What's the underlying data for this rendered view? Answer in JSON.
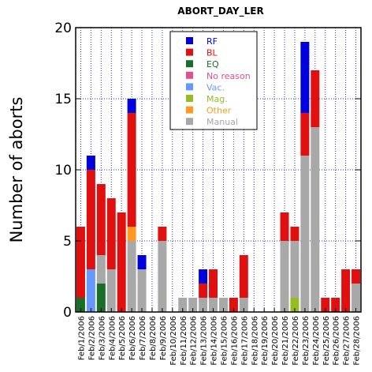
{
  "chart_data": {
    "type": "bar",
    "stacked": true,
    "title": "ABORT_DAY_LER",
    "xlabel": "",
    "ylabel": "Number of aborts",
    "ylim": [
      0,
      20
    ],
    "yticks": [
      0,
      5,
      10,
      15,
      20
    ],
    "grid": true,
    "legend_position": "top-center",
    "categories": [
      "Feb/1/2006",
      "Feb/2/2006",
      "Feb/3/2006",
      "Feb/4/2006",
      "Feb/5/2006",
      "Feb/6/2006",
      "Feb/7/2006",
      "Feb/8/2006",
      "Feb/9/2006",
      "Feb/10/2006",
      "Feb/11/2006",
      "Feb/12/2006",
      "Feb/13/2006",
      "Feb/14/2006",
      "Feb/15/2006",
      "Feb/16/2006",
      "Feb/17/2006",
      "Feb/18/2006",
      "Feb/19/2006",
      "Feb/20/2006",
      "Feb/21/2006",
      "Feb/22/2006",
      "Feb/23/2006",
      "Feb/24/2006",
      "Feb/25/2006",
      "Feb/26/2006",
      "Feb/27/2006",
      "Feb/28/2006"
    ],
    "stack_order": [
      "EQ",
      "Vac.",
      "Mag.",
      "Manual",
      "Other",
      "No reason",
      "BL",
      "RF"
    ],
    "series": [
      {
        "name": "RF",
        "color": "#0000dd",
        "values": [
          0,
          1,
          0,
          0,
          0,
          1,
          1,
          0,
          0,
          0,
          0,
          0,
          1,
          0,
          0,
          0,
          0,
          0,
          0,
          0,
          0,
          0,
          5,
          0,
          0,
          0,
          0,
          0
        ]
      },
      {
        "name": "BL",
        "color": "#e01010",
        "values": [
          5,
          7,
          5,
          5,
          7,
          8,
          0,
          0,
          1,
          0,
          0,
          0,
          1,
          2,
          0,
          1,
          3,
          0,
          0,
          0,
          2,
          1,
          3,
          4,
          1,
          1,
          3,
          1
        ]
      },
      {
        "name": "EQ",
        "color": "#1a6e2a",
        "values": [
          1,
          0,
          2,
          0,
          0,
          0,
          0,
          0,
          0,
          0,
          0,
          0,
          0,
          0,
          0,
          0,
          0,
          0,
          0,
          0,
          0,
          0,
          0,
          0,
          0,
          0,
          0,
          0
        ]
      },
      {
        "name": "No reason",
        "color": "#e0508a",
        "values": [
          0,
          0,
          0,
          0,
          0,
          0,
          0,
          0,
          0,
          0,
          0,
          0,
          0,
          0,
          0,
          0,
          0,
          0,
          0,
          0,
          0,
          0,
          0,
          0,
          0,
          0,
          0,
          0
        ]
      },
      {
        "name": "Vac.",
        "color": "#6699ff",
        "values": [
          0,
          3,
          0,
          0,
          0,
          0,
          0,
          0,
          0,
          0,
          0,
          0,
          0,
          0,
          0,
          0,
          0,
          0,
          0,
          0,
          0,
          0,
          0,
          0,
          0,
          0,
          0,
          0
        ]
      },
      {
        "name": "Mag.",
        "color": "#99bb22",
        "values": [
          0,
          0,
          0,
          0,
          0,
          0,
          0,
          0,
          0,
          0,
          0,
          0,
          0,
          0,
          0,
          0,
          0,
          0,
          0,
          0,
          0,
          1,
          0,
          0,
          0,
          0,
          0,
          0
        ]
      },
      {
        "name": "Other",
        "color": "#ff9922",
        "values": [
          0,
          0,
          0,
          0,
          0,
          1,
          0,
          0,
          0,
          0,
          0,
          0,
          0,
          0,
          0,
          0,
          0,
          0,
          0,
          0,
          0,
          0,
          0,
          0,
          0,
          0,
          0,
          0
        ]
      },
      {
        "name": "Manual",
        "color": "#a8a8a8",
        "values": [
          0,
          0,
          2,
          3,
          0,
          5,
          3,
          0,
          5,
          0,
          1,
          1,
          1,
          1,
          1,
          0,
          1,
          0,
          0,
          0,
          5,
          4,
          11,
          13,
          0,
          0,
          0,
          2
        ]
      }
    ]
  }
}
